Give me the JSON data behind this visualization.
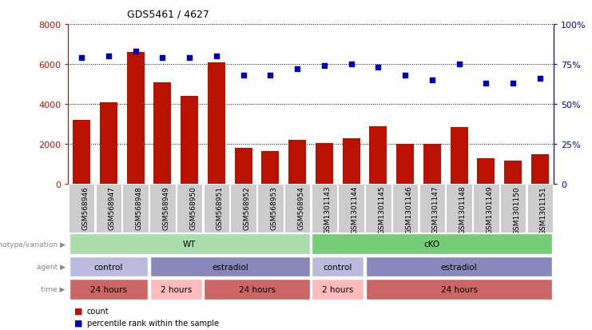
{
  "title": "GDS5461 / 4627",
  "samples": [
    "GSM568946",
    "GSM568947",
    "GSM568948",
    "GSM568949",
    "GSM568950",
    "GSM568951",
    "GSM568952",
    "GSM568953",
    "GSM568954",
    "GSM1301143",
    "GSM1301144",
    "GSM1301145",
    "GSM1301146",
    "GSM1301147",
    "GSM1301148",
    "GSM1301149",
    "GSM1301150",
    "GSM1301151"
  ],
  "counts": [
    3200,
    4100,
    6600,
    5100,
    4400,
    6100,
    1800,
    1650,
    2200,
    2050,
    2300,
    2900,
    2000,
    2000,
    2850,
    1300,
    1150,
    1500
  ],
  "percentile": [
    79,
    80,
    83,
    79,
    79,
    80,
    68,
    68,
    72,
    74,
    75,
    73,
    68,
    65,
    75,
    63,
    63,
    66
  ],
  "bar_color": "#bb1100",
  "dot_color": "#0000bb",
  "ylim_left": [
    0,
    8000
  ],
  "ylim_right": [
    0,
    100
  ],
  "yticks_left": [
    0,
    2000,
    4000,
    6000,
    8000
  ],
  "yticks_right": [
    0,
    25,
    50,
    75,
    100
  ],
  "genotype_row": {
    "label": "genotype/variation",
    "groups": [
      {
        "text": "WT",
        "start": 0,
        "end": 9,
        "color": "#aaddaa"
      },
      {
        "text": "cKO",
        "start": 9,
        "end": 18,
        "color": "#77cc77"
      }
    ]
  },
  "agent_row": {
    "label": "agent",
    "groups": [
      {
        "text": "control",
        "start": 0,
        "end": 3,
        "color": "#bbbbdd"
      },
      {
        "text": "estradiol",
        "start": 3,
        "end": 9,
        "color": "#8888bb"
      },
      {
        "text": "control",
        "start": 9,
        "end": 11,
        "color": "#bbbbdd"
      },
      {
        "text": "estradiol",
        "start": 11,
        "end": 18,
        "color": "#8888bb"
      }
    ]
  },
  "time_row": {
    "label": "time",
    "groups": [
      {
        "text": "24 hours",
        "start": 0,
        "end": 3,
        "color": "#cc6666"
      },
      {
        "text": "2 hours",
        "start": 3,
        "end": 5,
        "color": "#ffbbbb"
      },
      {
        "text": "24 hours",
        "start": 5,
        "end": 9,
        "color": "#cc6666"
      },
      {
        "text": "2 hours",
        "start": 9,
        "end": 11,
        "color": "#ffbbbb"
      },
      {
        "text": "24 hours",
        "start": 11,
        "end": 18,
        "color": "#cc6666"
      }
    ]
  },
  "legend": [
    {
      "label": "count",
      "color": "#bb1100"
    },
    {
      "label": "percentile rank within the sample",
      "color": "#0000bb"
    }
  ],
  "xticklabel_bg": "#cccccc",
  "plot_bg": "#ffffff"
}
